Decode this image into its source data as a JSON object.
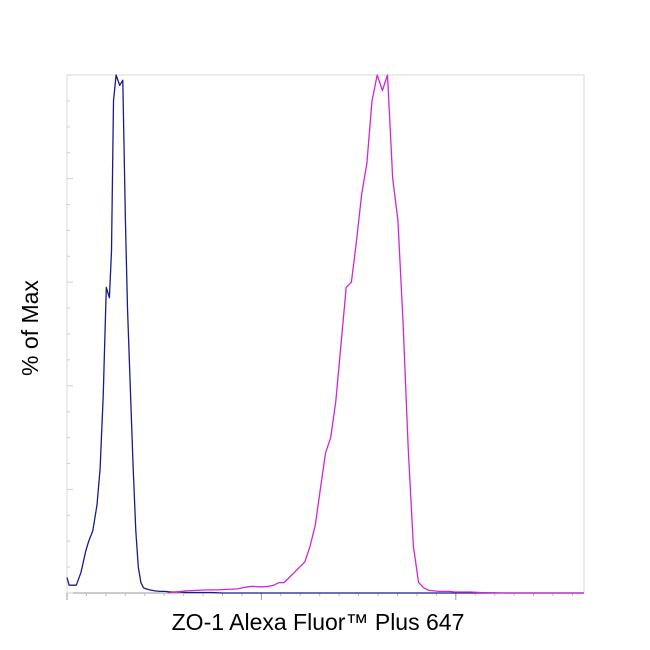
{
  "chart_data": {
    "type": "line",
    "title": "",
    "xlabel": "ZO-1 Alexa Fluor™ Plus 647",
    "ylabel": "% of Max",
    "xlim": [
      0,
      100
    ],
    "ylim": [
      0,
      100
    ],
    "grid": false,
    "legend": "none",
    "series": [
      {
        "color": "#1a1a8c",
        "x": [
          0,
          0.4,
          0.9,
          1.8,
          2.7,
          3.6,
          4.2,
          5.0,
          5.8,
          6.4,
          7.0,
          7.6,
          8.2,
          8.6,
          9.0,
          9.5,
          10.2,
          10.8,
          11.3,
          11.7,
          12.3,
          12.8,
          13.3,
          13.8,
          14.3,
          14.8,
          15.3,
          16.0,
          17.0,
          18.0,
          19.0,
          20.0,
          21.0,
          22.0,
          23.0,
          24.0,
          25.0,
          26.0,
          28.0,
          30.0,
          33.0,
          36.0,
          40.0,
          45.0,
          50.0,
          60.0,
          70.0,
          80.0,
          90.0,
          100.0
        ],
        "y": [
          3,
          1.5,
          1.5,
          1.5,
          4,
          8,
          10,
          12,
          17,
          24,
          38,
          59,
          57,
          66,
          95,
          100,
          98,
          99,
          72,
          55,
          38,
          24,
          12,
          5,
          2,
          1,
          0.8,
          0.6,
          0.4,
          0.3,
          0.3,
          0.2,
          0.2,
          0.2,
          0.1,
          0.1,
          0.1,
          0.1,
          0.1,
          0,
          0,
          0,
          0,
          0,
          0,
          0,
          0,
          0,
          0,
          0
        ]
      },
      {
        "color": "#d126d6",
        "x": [
          19.5,
          21.0,
          23.0,
          25.0,
          27.0,
          29.0,
          31.0,
          33.0,
          34.0,
          35.0,
          36.0,
          37.0,
          38.0,
          39.0,
          40.0,
          41.0,
          42.0,
          43.0,
          44.0,
          45.0,
          46.0,
          47.0,
          48.0,
          49.0,
          50.0,
          51.0,
          52.0,
          53.0,
          54.0,
          55.0,
          56.0,
          57.0,
          58.0,
          59.0,
          60.0,
          61.0,
          62.0,
          63.0,
          64.0,
          65.0,
          66.0,
          67.0,
          68.0,
          69.0,
          70.0,
          71.0,
          72.0,
          73.0,
          74.0,
          75.0,
          76.0,
          77.0,
          78.0,
          80.0,
          85.0,
          90.0,
          95.0,
          100.0
        ],
        "y": [
          0,
          0.2,
          0.4,
          0.5,
          0.6,
          0.6,
          0.7,
          0.8,
          1,
          1.2,
          1.3,
          1.2,
          1.2,
          1.3,
          1.5,
          2,
          2,
          3,
          4,
          5,
          6,
          9,
          13,
          20,
          27,
          30,
          37,
          48,
          59,
          60,
          68,
          77,
          83,
          95,
          100,
          97,
          100,
          80,
          72,
          52,
          28,
          9,
          2,
          1,
          0.5,
          0.4,
          0.3,
          0.3,
          0.3,
          0.2,
          0.2,
          0.2,
          0.2,
          0.1,
          0,
          0,
          0,
          0
        ]
      }
    ]
  }
}
